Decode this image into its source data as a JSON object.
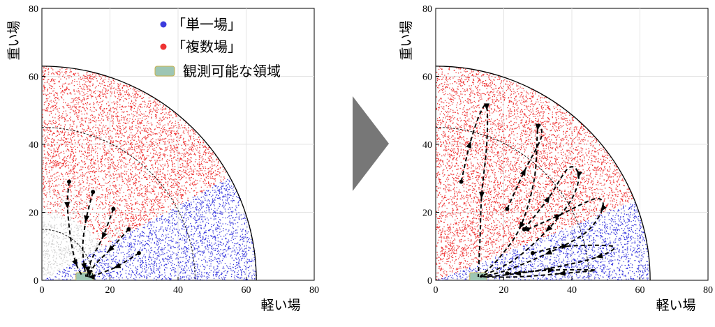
{
  "chart_data": [
    {
      "type": "scatter",
      "panel": "left",
      "xlabel": "軽い場",
      "ylabel": "重い場",
      "xlim": [
        0,
        80
      ],
      "ylim": [
        0,
        80
      ],
      "xticks": [
        "0",
        "20",
        "40",
        "60",
        "80"
      ],
      "yticks": [
        "0",
        "20",
        "40",
        "60",
        "80"
      ],
      "outer_radius": 63,
      "reference_circles": [
        15,
        45
      ],
      "region_boundary_angle_deg": 29,
      "observable_region": {
        "x": [
          10,
          15
        ],
        "y": [
          0,
          1
        ]
      },
      "series": [
        {
          "name": "「単一場」",
          "color": "#3b3bdd",
          "region": "below boundary, r < 63"
        },
        {
          "name": "「複数場」",
          "color": "#ee3333",
          "region": "above boundary, r < 63"
        },
        {
          "name": "観測可能な領域",
          "color": "#9ec6b4",
          "region": "observable"
        }
      ],
      "trajectories": [
        [
          [
            8,
            29
          ],
          [
            7.5,
            22
          ],
          [
            8.5,
            12
          ],
          [
            10,
            5
          ],
          [
            12,
            1
          ]
        ],
        [
          [
            15,
            26
          ],
          [
            13,
            18
          ],
          [
            12,
            10
          ],
          [
            12.5,
            4
          ],
          [
            13,
            1
          ]
        ],
        [
          [
            21,
            21
          ],
          [
            18,
            13
          ],
          [
            15,
            7
          ],
          [
            13.5,
            3
          ],
          [
            13.5,
            1
          ]
        ],
        [
          [
            25.5,
            15
          ],
          [
            20,
            9
          ],
          [
            16,
            5
          ],
          [
            14,
            2
          ],
          [
            14,
            1
          ]
        ],
        [
          [
            28.5,
            8
          ],
          [
            22,
            4
          ],
          [
            17,
            2
          ],
          [
            14.5,
            1
          ],
          [
            14,
            1
          ]
        ]
      ]
    },
    {
      "type": "scatter",
      "panel": "right",
      "xlabel": "軽い場",
      "ylabel": "重い場",
      "xlim": [
        0,
        80
      ],
      "ylim": [
        0,
        80
      ],
      "xticks": [
        "0",
        "20",
        "40",
        "60",
        "80"
      ],
      "yticks": [
        "0",
        "20",
        "40",
        "60",
        "80"
      ],
      "outer_radius": 63,
      "reference_circles": [
        45
      ],
      "region_boundary_angle_deg": 22,
      "observable_region": {
        "x": [
          10,
          15
        ],
        "y": [
          0,
          1
        ]
      },
      "trajectories": [
        [
          [
            7.5,
            29
          ],
          [
            10,
            40
          ],
          [
            13,
            49
          ],
          [
            15,
            51
          ],
          [
            15,
            40
          ],
          [
            13.5,
            25
          ],
          [
            13,
            12
          ],
          [
            12.5,
            1
          ]
        ],
        [
          [
            21,
            21
          ],
          [
            26,
            32
          ],
          [
            31,
            42
          ],
          [
            30,
            45
          ],
          [
            29,
            30
          ],
          [
            25,
            16
          ],
          [
            19,
            7
          ],
          [
            13,
            1
          ]
        ],
        [
          [
            26,
            15
          ],
          [
            33,
            24
          ],
          [
            39,
            33
          ],
          [
            42,
            31
          ],
          [
            40,
            24
          ],
          [
            33,
            15
          ],
          [
            23,
            6
          ],
          [
            13,
            1
          ]
        ],
        [
          [
            27,
            15
          ],
          [
            36,
            19
          ],
          [
            47,
            24
          ],
          [
            49,
            21
          ],
          [
            44,
            14
          ],
          [
            33,
            8
          ],
          [
            21,
            3
          ],
          [
            13,
            1
          ]
        ],
        [
          [
            28.5,
            8
          ],
          [
            38,
            10
          ],
          [
            52,
            10
          ],
          [
            48,
            7
          ],
          [
            36,
            4
          ],
          [
            24,
            2
          ],
          [
            14,
            1
          ]
        ],
        [
          [
            21,
            2
          ],
          [
            34,
            3
          ],
          [
            47,
            3
          ],
          [
            37,
            2
          ],
          [
            24,
            1
          ],
          [
            13,
            1
          ]
        ]
      ]
    }
  ]
}
